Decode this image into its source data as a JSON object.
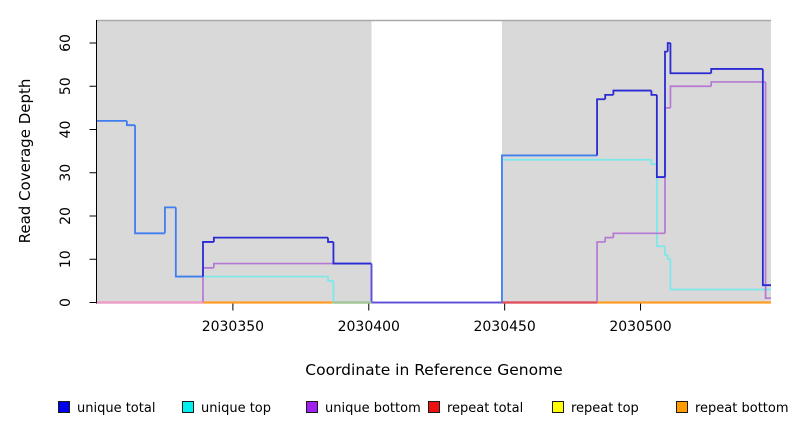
{
  "chart_data": {
    "type": "line",
    "subtype": "step-coverage",
    "title": "",
    "xlabel": "Coordinate in Reference Genome",
    "ylabel": "Read Coverage Depth",
    "x_range": [
      2030300,
      2030548
    ],
    "y_range": [
      0,
      65
    ],
    "x_ticks": [
      2030350,
      2030400,
      2030450,
      2030500
    ],
    "y_ticks": [
      0,
      10,
      20,
      30,
      40,
      50,
      60
    ],
    "grid": false,
    "plot_bg": "#d9d9d9",
    "plot_top_border": "#a9a9a9",
    "gap_span": [
      2030401,
      2030449
    ],
    "regions": [
      {
        "start": 2030300,
        "end": 2030401,
        "bg": "#d9d9d9"
      },
      {
        "start": 2030449,
        "end": 2030548,
        "bg": "#d9d9d9"
      }
    ],
    "series": [
      {
        "name": "repeat top",
        "color": "#ffe800",
        "width": 2.0,
        "steps": [
          [
            2030300,
            2030401,
            0
          ],
          [
            2030449,
            2030548,
            0
          ]
        ]
      },
      {
        "name": "repeat total",
        "color": "#dd4455",
        "width": 1.7,
        "steps": [
          [
            2030300,
            2030401,
            0
          ],
          [
            2030449,
            2030548,
            0
          ]
        ]
      },
      {
        "name": "repeat bottom",
        "color": "#ff9d26",
        "width": 2.2,
        "steps": [
          [
            2030300,
            2030401,
            0
          ],
          [
            2030449,
            2030548,
            0
          ]
        ]
      },
      {
        "name": "unique top",
        "color": "#7ce8ea",
        "width": 1.7,
        "steps": [
          [
            2030329,
            2030385,
            6
          ],
          [
            2030385,
            2030387,
            5
          ],
          [
            2030387,
            2030401,
            0
          ],
          [
            2030449,
            2030504,
            33
          ],
          [
            2030504,
            2030506,
            32
          ],
          [
            2030506,
            2030509,
            13
          ],
          [
            2030509,
            2030510,
            11
          ],
          [
            2030510,
            2030511,
            10
          ],
          [
            2030511,
            2030548,
            3
          ]
        ]
      },
      {
        "name": "unique bottom",
        "color": "#b678d4",
        "width": 1.7,
        "steps": [
          [
            2030300,
            2030339,
            0
          ],
          [
            2030339,
            2030343,
            8
          ],
          [
            2030343,
            2030401,
            9
          ],
          [
            2030401,
            2030449,
            0
          ],
          [
            2030449,
            2030484,
            0
          ],
          [
            2030484,
            2030487,
            14
          ],
          [
            2030487,
            2030490,
            15
          ],
          [
            2030490,
            2030509,
            16
          ],
          [
            2030509,
            2030511,
            45
          ],
          [
            2030511,
            2030526,
            50
          ],
          [
            2030526,
            2030546,
            51
          ],
          [
            2030546,
            2030548,
            1
          ]
        ]
      },
      {
        "name": "unique total",
        "color": "#2a2ad4",
        "width": 1.8,
        "palette": {
          "bright": "#407ef0",
          "dark": "#2a2ad4",
          "violet": "#5b50dd"
        },
        "steps": [
          [
            2030300,
            2030311,
            42,
            "bright"
          ],
          [
            2030311,
            2030314,
            41,
            "bright"
          ],
          [
            2030314,
            2030325,
            16,
            "bright"
          ],
          [
            2030325,
            2030329,
            22,
            "bright"
          ],
          [
            2030329,
            2030339,
            6,
            "bright"
          ],
          [
            2030339,
            2030343,
            14,
            "dark"
          ],
          [
            2030343,
            2030385,
            15,
            "dark"
          ],
          [
            2030385,
            2030387,
            14,
            "dark"
          ],
          [
            2030387,
            2030401,
            9,
            "dark"
          ],
          [
            2030401,
            2030449,
            0,
            "violet"
          ],
          [
            2030449,
            2030484,
            34,
            "bright"
          ],
          [
            2030484,
            2030487,
            47,
            "dark"
          ],
          [
            2030487,
            2030490,
            48,
            "dark"
          ],
          [
            2030490,
            2030504,
            49,
            "dark"
          ],
          [
            2030504,
            2030506,
            48,
            "dark"
          ],
          [
            2030506,
            2030509,
            29,
            "dark"
          ],
          [
            2030509,
            2030510,
            58,
            "dark"
          ],
          [
            2030510,
            2030511,
            60,
            "dark"
          ],
          [
            2030511,
            2030526,
            53,
            "dark"
          ],
          [
            2030526,
            2030545,
            54,
            "dark"
          ],
          [
            2030545,
            2030548,
            4,
            "dark"
          ]
        ]
      }
    ],
    "baseline_overlaps": [
      {
        "span": [
          2030300,
          2030339
        ],
        "blend": "unique-bottom over repeat lines",
        "color": "#eb9dd3"
      },
      {
        "span": [
          2030387,
          2030401
        ],
        "blend": "unique-top over repeat bottom",
        "color": "#98c89e"
      },
      {
        "span": [
          2030449,
          2030484
        ],
        "blend": "repeat total visible",
        "color": "#dd4f66"
      }
    ],
    "legend_position": "bottom"
  },
  "legend": {
    "items": [
      {
        "label": "unique total",
        "color": "#0000ee"
      },
      {
        "label": "unique top",
        "color": "#00f0f0"
      },
      {
        "label": "unique bottom",
        "color": "#a020f0"
      },
      {
        "label": "repeat total",
        "color": "#ee1111"
      },
      {
        "label": "repeat top",
        "color": "#ffff00"
      },
      {
        "label": "repeat bottom",
        "color": "#ff9d00"
      }
    ]
  }
}
